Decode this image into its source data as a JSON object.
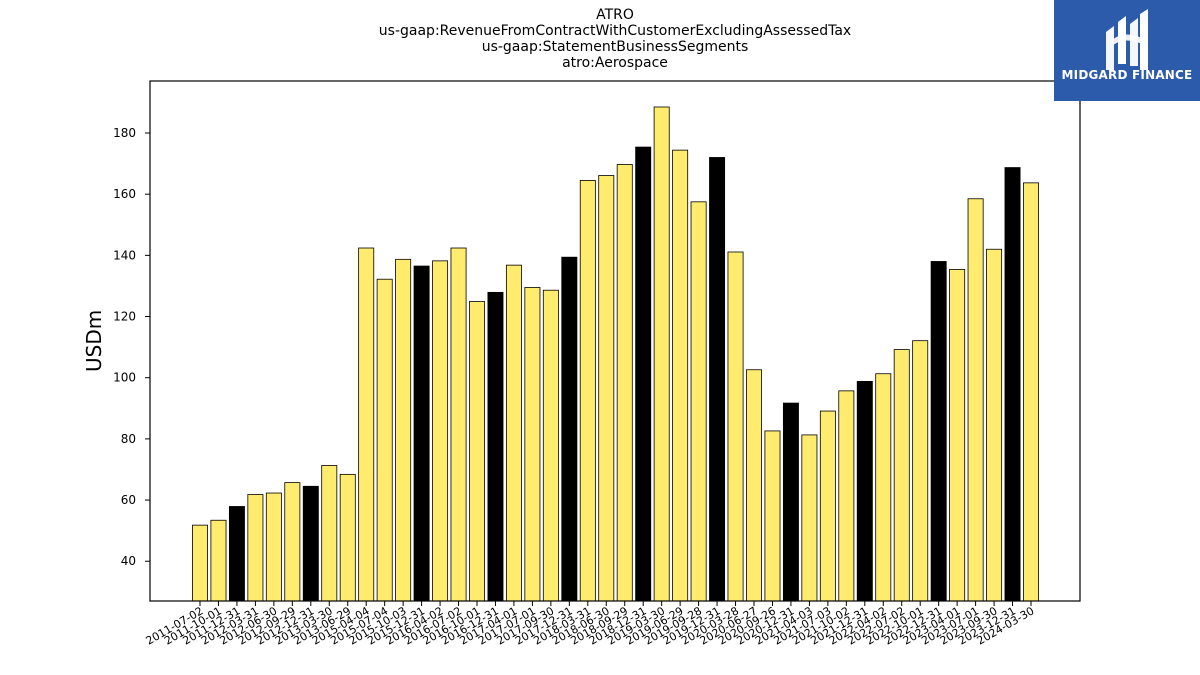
{
  "title_lines": [
    "ATRO",
    "us-gaap:RevenueFromContractWithCustomerExcludingAssessedTax",
    "us-gaap:StatementBusinessSegments",
    "atro:Aerospace"
  ],
  "logo": {
    "text": "MIDGARD FINANCE",
    "bg_color": "#2b5baa",
    "fg_color": "#ffffff"
  },
  "colors": {
    "regular_bar": "#ffec6e",
    "annual_bar": "#000000",
    "edge": "#000000"
  },
  "chart_data": {
    "type": "bar",
    "ylabel": "USDm",
    "xlabel": "",
    "ylim": [
      27,
      197
    ],
    "yticks": [
      40,
      60,
      80,
      100,
      120,
      140,
      160,
      180
    ],
    "grid": false,
    "categories": [
      "2011-07-02",
      "2011-10-01",
      "2011-12-31",
      "2012-03-31",
      "2012-06-30",
      "2012-09-29",
      "2012-12-31",
      "2013-03-30",
      "2013-06-29",
      "2015-04-04",
      "2015-07-04",
      "2015-10-03",
      "2015-12-31",
      "2016-04-02",
      "2016-07-02",
      "2016-10-01",
      "2016-12-31",
      "2017-04-01",
      "2017-07-01",
      "2017-09-30",
      "2017-12-31",
      "2018-03-31",
      "2018-06-30",
      "2018-09-29",
      "2018-12-31",
      "2019-03-30",
      "2019-06-29",
      "2019-09-28",
      "2019-12-31",
      "2020-03-28",
      "2020-06-27",
      "2020-09-26",
      "2020-12-31",
      "2021-04-03",
      "2021-07-03",
      "2021-10-02",
      "2021-12-31",
      "2022-04-02",
      "2022-07-02",
      "2022-10-01",
      "2022-12-31",
      "2023-04-01",
      "2023-07-01",
      "2023-09-30",
      "2023-12-31",
      "2024-03-30"
    ],
    "values": [
      51.8,
      53.4,
      57.9,
      61.8,
      62.3,
      65.7,
      64.5,
      71.3,
      68.4,
      142.4,
      132.2,
      138.7,
      136.5,
      138.2,
      142.4,
      124.9,
      127.9,
      136.8,
      129.5,
      128.6,
      139.4,
      164.5,
      166.1,
      169.7,
      175.4,
      188.5,
      174.4,
      157.5,
      172.0,
      141.1,
      102.6,
      82.6,
      91.7,
      81.3,
      89.1,
      95.7,
      98.8,
      101.3,
      109.2,
      112.1,
      138.0,
      135.4,
      158.5,
      142.0,
      168.7,
      163.7
    ],
    "highlight": [
      false,
      false,
      true,
      false,
      false,
      false,
      true,
      false,
      false,
      false,
      false,
      false,
      true,
      false,
      false,
      false,
      true,
      false,
      false,
      false,
      true,
      false,
      false,
      false,
      true,
      false,
      false,
      false,
      true,
      false,
      false,
      false,
      true,
      false,
      false,
      false,
      true,
      false,
      false,
      false,
      true,
      false,
      false,
      false,
      true,
      false
    ]
  }
}
